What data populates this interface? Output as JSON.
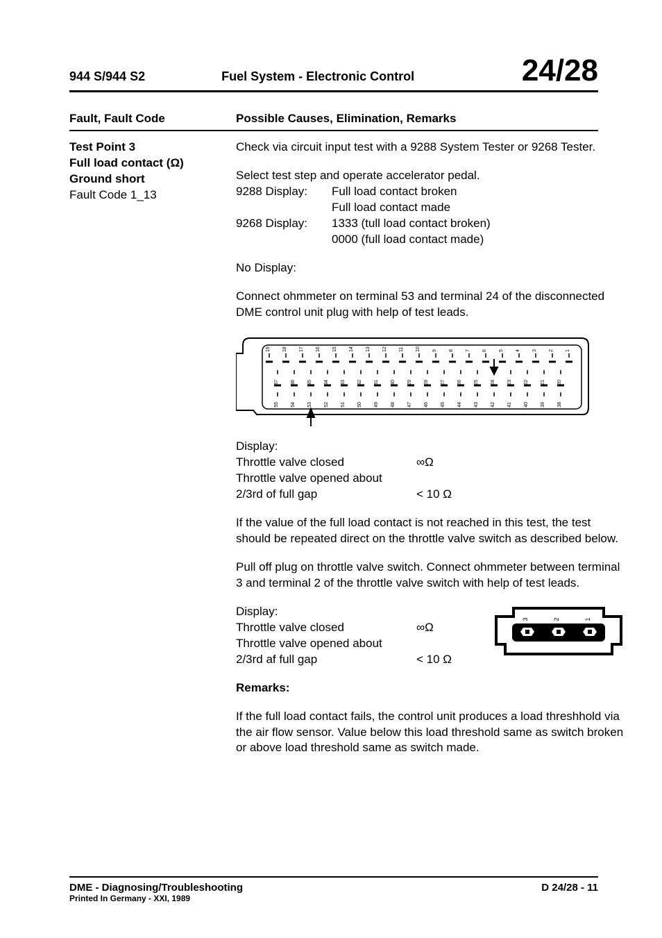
{
  "header": {
    "model": "944 S/944 S2",
    "section": "Fuel System - Electronic Control",
    "page": "24/28"
  },
  "columns": {
    "left": "Fault, Fault Code",
    "right": "Possible Causes, Elimination, Remarks"
  },
  "fault": {
    "test_point": "Test Point 3",
    "name_pre": "Full load contact (",
    "name_post": ")",
    "omega": "Ω",
    "condition": "Ground short",
    "code": "Fault Code 1_13"
  },
  "body": {
    "p1": "Check via circuit input test with a 9288 System Tester or 9268 Tester.",
    "p2": "Select test step and operate accelerator pedal.",
    "disp_9288_label": "9288 Display:",
    "disp_9288_l1": "Full load contact broken",
    "disp_9288_l2": "Full load contact made",
    "disp_9268_label": "9268 Display:",
    "disp_9268_l1": "1333 (tull load contact broken)",
    "disp_9268_l2": "0000 (full load contact made)",
    "no_display": "No Display:",
    "p3": "Connect ohmmeter on terminal 53 and terminal 24 of the disconnected DME control unit plug with help of test leads.",
    "display_label": "Display:",
    "tv_closed": "Throttle valve closed",
    "tv_open_l1": "Throttle valve opened about",
    "tv_open_l2": "2/3rd of full gap",
    "inf_ohm": "∞Ω",
    "lt10": "< 10 Ω",
    "p4": "If the value of the full load contact is not reached in this test, the test should be repeated direct on the throttle valve switch as described below.",
    "p5": "Pull off plug on throttle valve switch. Connect ohmmeter between terminal 3 and terminal 2 of the throttle valve switch with help of test leads.",
    "tv_open_l2b": "2/3rd af full gap",
    "remarks": "Remarks:",
    "p6": "If the full load contact fails, the control unit produces a load threshhold via the air flow sensor. Value below this load threshold same as switch broken or above load threshold same as switch made."
  },
  "connector": {
    "row1": [
      "19",
      "18",
      "17",
      "16",
      "15",
      "14",
      "13",
      "12",
      "11",
      "10",
      "9",
      "8",
      "7",
      "6",
      "5",
      "4",
      "3",
      "2",
      "1"
    ],
    "row2": [
      "37",
      "36",
      "35",
      "34",
      "33",
      "32",
      "31",
      "30",
      "29",
      "28",
      "27",
      "26",
      "25",
      "24",
      "23",
      "22",
      "21",
      "20"
    ],
    "row3": [
      "55",
      "54",
      "53",
      "52",
      "51",
      "50",
      "49",
      "48",
      "47",
      "46",
      "45",
      "44",
      "43",
      "42",
      "41",
      "40",
      "39",
      "38"
    ],
    "arrow_down_col": 13,
    "arrow_up_col": 2,
    "stroke": "#000000",
    "bg": "#ffffff"
  },
  "small_connector": {
    "pins": [
      "3",
      "2",
      "1"
    ]
  },
  "footer": {
    "title": "DME - Diagnosing/Troubleshooting",
    "print": "Printed In Germany - XXI, 1989",
    "page": "D 24/28 - 11"
  }
}
